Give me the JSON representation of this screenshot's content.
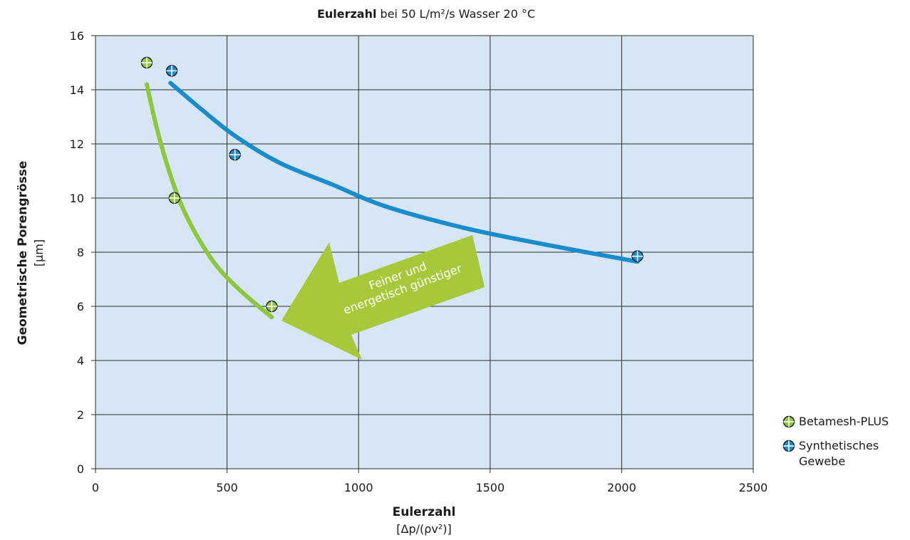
{
  "chart_data": {
    "type": "scatter",
    "title_bold": "Eulerzahl",
    "title_rest": " bei 50 L/m²/s Wasser 20 °C",
    "xlabel": "Eulerzahl",
    "xlabel_unit": "[Δp/(ρv²)]",
    "ylabel": "Geometrische Porengrösse",
    "ylabel_unit": "[µm]",
    "xlim": [
      0,
      2500
    ],
    "ylim": [
      0,
      16
    ],
    "x_ticks": [
      0,
      500,
      1000,
      1500,
      2000,
      2500
    ],
    "y_ticks": [
      0,
      2,
      4,
      6,
      8,
      10,
      12,
      14,
      16
    ],
    "grid": true,
    "legend_position": "right",
    "series": [
      {
        "name": "Betamesh-PLUS",
        "color": "#8dc63f",
        "points": [
          [
            195,
            15
          ],
          [
            300,
            10
          ],
          [
            670,
            6
          ]
        ],
        "fit_curve": [
          [
            195,
            14.2
          ],
          [
            230,
            12.7
          ],
          [
            270,
            11.3
          ],
          [
            320,
            9.9
          ],
          [
            380,
            8.7
          ],
          [
            460,
            7.5
          ],
          [
            560,
            6.5
          ],
          [
            670,
            5.6
          ]
        ]
      },
      {
        "name": "Synthetisches Gewebe",
        "legend_lines": [
          "Synthetisches",
          "Gewebe"
        ],
        "color": "#1b8ccb",
        "points": [
          [
            290,
            14.7
          ],
          [
            530,
            11.6
          ],
          [
            2060,
            7.85
          ]
        ],
        "fit_curve": [
          [
            285,
            14.25
          ],
          [
            400,
            13.3
          ],
          [
            530,
            12.3
          ],
          [
            700,
            11.3
          ],
          [
            900,
            10.5
          ],
          [
            1100,
            9.7
          ],
          [
            1400,
            8.9
          ],
          [
            1700,
            8.3
          ],
          [
            2060,
            7.65
          ]
        ]
      }
    ],
    "annotation": {
      "lines": [
        "Feiner und",
        "energetisch günstiger"
      ],
      "color": "#a6c83a"
    },
    "plot_background": "#d6e6f5"
  }
}
